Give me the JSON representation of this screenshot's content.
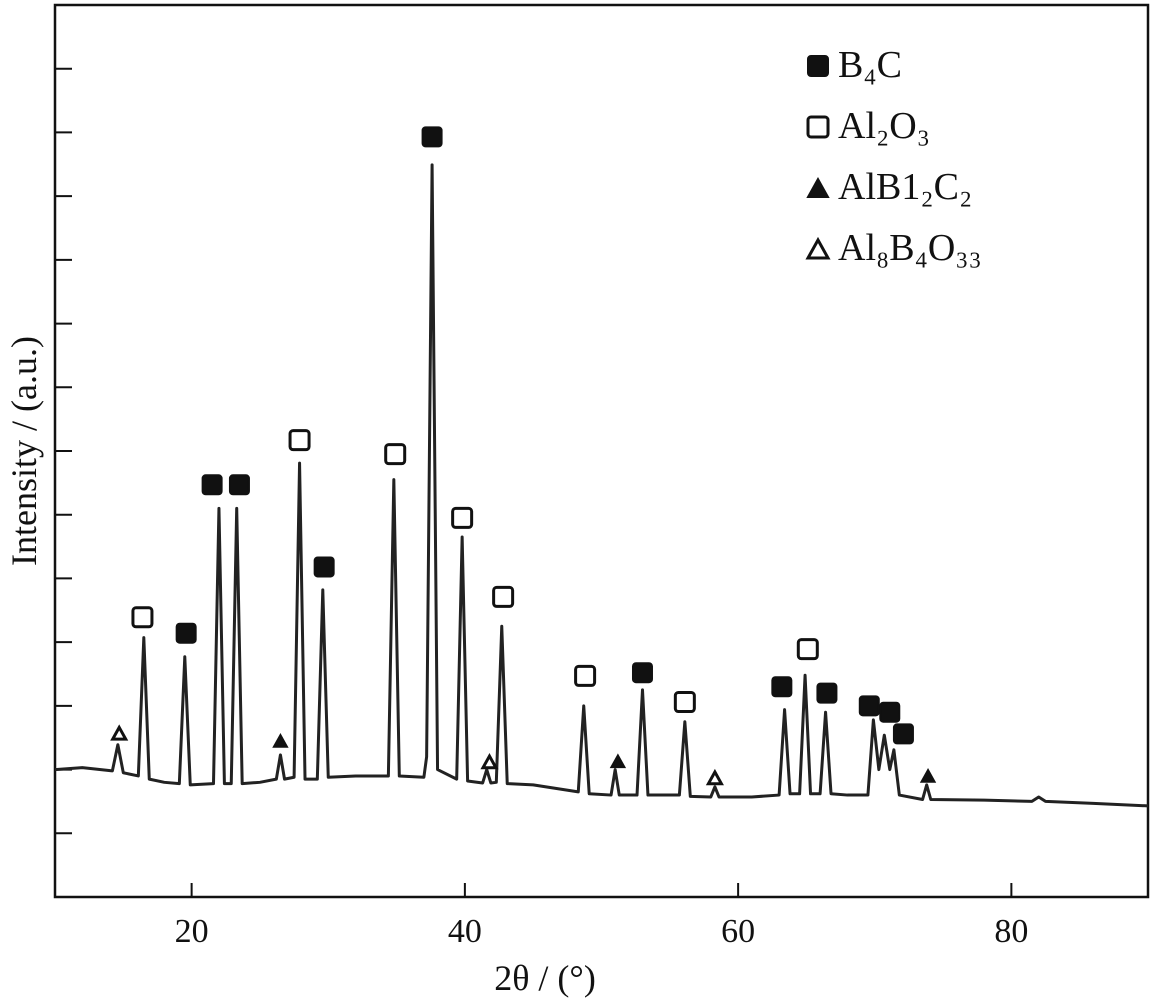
{
  "chart_data": {
    "type": "line",
    "x_label": "2θ / (°)",
    "y_label": "Intensity / (a.u.)",
    "xlim": [
      10,
      90
    ],
    "ylim": [
      0,
      14
    ],
    "xticks": [
      20,
      40,
      60,
      80
    ],
    "yticks": [
      1,
      2,
      3,
      4,
      5,
      6,
      7,
      8,
      9,
      10,
      11,
      12,
      13
    ],
    "color": "#222222",
    "legend": "upper right",
    "x": [
      10,
      12,
      14.2,
      14.6,
      15,
      16.1,
      16.5,
      16.9,
      18,
      19.1,
      19.5,
      19.9,
      21.6,
      22,
      22.4,
      22.9,
      23.3,
      23.7,
      25,
      26.2,
      26.5,
      26.8,
      27.5,
      27.9,
      28.3,
      29.2,
      29.6,
      30,
      32,
      34.4,
      34.8,
      35.2,
      37,
      37.2,
      37.6,
      38,
      39.4,
      39.8,
      40.2,
      41.3,
      41.6,
      41.9,
      42.3,
      42.7,
      43.1,
      45,
      48.3,
      48.7,
      49.1,
      50.7,
      51,
      51.3,
      52.6,
      53,
      53.4,
      55.7,
      56.1,
      56.5,
      58,
      58.3,
      58.6,
      61,
      63,
      63.4,
      63.8,
      64.5,
      64.9,
      65.3,
      66,
      66.4,
      66.8,
      68,
      69.5,
      69.9,
      70.3,
      70.7,
      71.1,
      71.4,
      71.8,
      73.5,
      73.8,
      74.1,
      78,
      81.5,
      82,
      82.5,
      86,
      90
    ],
    "values": [
      2.0,
      2.03,
      1.98,
      2.39,
      1.95,
      1.9,
      4.07,
      1.85,
      1.8,
      1.78,
      3.77,
      1.76,
      1.78,
      6.1,
      1.78,
      1.78,
      6.1,
      1.78,
      1.8,
      1.85,
      2.23,
      1.85,
      1.88,
      6.81,
      1.85,
      1.85,
      4.82,
      1.88,
      1.9,
      1.9,
      6.55,
      1.9,
      1.88,
      2.2,
      11.49,
      2.0,
      1.85,
      5.65,
      1.82,
      1.79,
      2.0,
      1.79,
      1.8,
      4.25,
      1.78,
      1.76,
      1.65,
      3.0,
      1.62,
      1.6,
      2.0,
      1.6,
      1.6,
      3.25,
      1.6,
      1.6,
      2.75,
      1.58,
      1.57,
      1.73,
      1.57,
      1.57,
      1.6,
      2.94,
      1.62,
      1.62,
      3.48,
      1.62,
      1.62,
      2.9,
      1.62,
      1.6,
      1.6,
      2.78,
      2.0,
      2.54,
      2.0,
      2.31,
      1.6,
      1.53,
      1.76,
      1.53,
      1.52,
      1.5,
      1.57,
      1.5,
      1.47,
      1.43
    ],
    "markers": [
      {
        "name": "B₄C",
        "symbol": "square",
        "filled": true,
        "color": "#111111",
        "x": [
          37.6,
          19.6,
          21.5,
          23.5,
          29.7,
          53.0,
          63.2,
          66.5,
          69.6,
          71.1,
          72.1
        ],
        "y": [
          11.93,
          4.14,
          6.47,
          6.47,
          5.18,
          3.52,
          3.3,
          3.2,
          3.0,
          2.9,
          2.56
        ]
      },
      {
        "name": "Al₂O₃",
        "symbol": "square",
        "filled": false,
        "color": "#111111",
        "x": [
          16.4,
          27.9,
          34.9,
          39.8,
          42.8,
          48.8,
          56.1,
          65.1
        ],
        "y": [
          4.39,
          7.17,
          6.95,
          5.95,
          4.71,
          3.47,
          3.06,
          3.89
        ]
      },
      {
        "name": "AlB1₂C₂",
        "symbol": "triangle",
        "filled": true,
        "color": "#111111",
        "x": [
          26.5,
          51.2,
          73.9
        ],
        "y": [
          2.45,
          2.13,
          1.9
        ]
      },
      {
        "name": "Al₈B₄O₃₃",
        "symbol": "triangle",
        "filled": false,
        "color": "#111111",
        "x": [
          14.7,
          41.8,
          58.3
        ],
        "y": [
          2.57,
          2.12,
          1.87
        ]
      }
    ]
  }
}
